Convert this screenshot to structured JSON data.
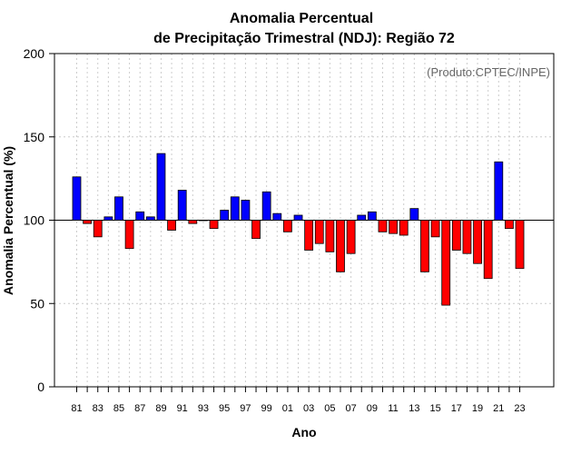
{
  "chart_data": {
    "type": "bar",
    "title_line1": "Anomalia Percentual",
    "title_line2": "de Precipitação Trimestral (NDJ): Região 72",
    "xlabel": "Ano",
    "ylabel": "Anomalia Percentual (%)",
    "credit": "(Produto:CPTEC/INPE)",
    "baseline": 100,
    "ylim": [
      0,
      200
    ],
    "yticks": [
      "0",
      "50",
      "100",
      "150",
      "200"
    ],
    "grid": true,
    "colors": {
      "above": "#0000ff",
      "below": "#ff0000",
      "grid": "#cccccc"
    },
    "years": [
      "81",
      "82",
      "83",
      "84",
      "85",
      "86",
      "87",
      "88",
      "89",
      "90",
      "91",
      "92",
      "93",
      "94",
      "95",
      "96",
      "97",
      "98",
      "99",
      "00",
      "01",
      "02",
      "03",
      "04",
      "05",
      "06",
      "07",
      "08",
      "09",
      "10",
      "11",
      "12",
      "13",
      "14",
      "15",
      "16",
      "17",
      "18",
      "19",
      "20",
      "21",
      "22",
      "23"
    ],
    "xtick_labels": [
      "81",
      "83",
      "85",
      "87",
      "89",
      "91",
      "93",
      "95",
      "97",
      "99",
      "01",
      "03",
      "05",
      "07",
      "09",
      "11",
      "13",
      "15",
      "17",
      "19",
      "21",
      "23"
    ],
    "values": [
      126,
      98,
      90,
      102,
      114,
      83,
      105,
      102,
      140,
      94,
      118,
      98,
      100,
      95,
      106,
      114,
      112,
      89,
      117,
      104,
      93,
      103,
      82,
      86,
      81,
      69,
      80,
      103,
      105,
      93,
      92,
      91,
      107,
      69,
      90,
      49,
      82,
      80,
      74,
      65,
      135,
      95,
      71
    ]
  }
}
